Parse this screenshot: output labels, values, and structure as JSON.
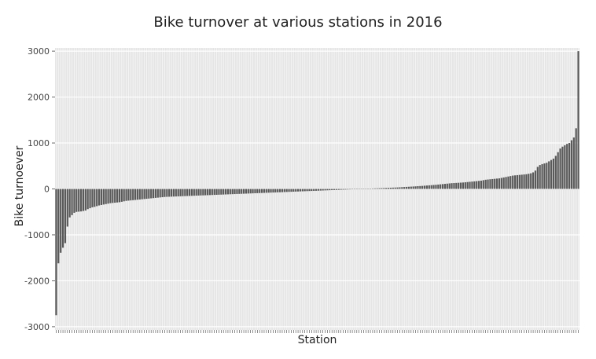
{
  "chart_data": {
    "type": "bar",
    "title": "Bike turnover at various stations in 2016",
    "xlabel": "Station",
    "ylabel": "Bike turnoever",
    "ylim": [
      -3070,
      3070
    ],
    "yticks": [
      -3000,
      -2000,
      -1000,
      0,
      1000,
      2000,
      3000
    ],
    "ytick_labels": [
      "-3000",
      "-2000",
      "-1000",
      "0",
      "1000",
      "2000",
      "3000"
    ],
    "x_tick_labels_visible": false,
    "grid": true,
    "bar_color": "#595959",
    "values": [
      -2750,
      -1620,
      -1390,
      -1280,
      -1180,
      -820,
      -620,
      -570,
      -520,
      -500,
      -495,
      -490,
      -480,
      -470,
      -440,
      -420,
      -400,
      -390,
      -375,
      -360,
      -350,
      -340,
      -330,
      -320,
      -310,
      -305,
      -300,
      -295,
      -290,
      -280,
      -270,
      -260,
      -255,
      -250,
      -245,
      -240,
      -235,
      -230,
      -225,
      -220,
      -215,
      -210,
      -205,
      -200,
      -195,
      -190,
      -185,
      -180,
      -175,
      -172,
      -170,
      -168,
      -166,
      -164,
      -162,
      -160,
      -158,
      -156,
      -154,
      -152,
      -150,
      -148,
      -146,
      -144,
      -142,
      -140,
      -138,
      -136,
      -134,
      -132,
      -130,
      -128,
      -126,
      -124,
      -122,
      -120,
      -118,
      -116,
      -114,
      -112,
      -110,
      -108,
      -106,
      -104,
      -102,
      -100,
      -98,
      -96,
      -94,
      -92,
      -90,
      -88,
      -86,
      -84,
      -82,
      -80,
      -78,
      -76,
      -74,
      -72,
      -70,
      -68,
      -66,
      -64,
      -62,
      -60,
      -58,
      -56,
      -54,
      -52,
      -50,
      -48,
      -46,
      -44,
      -42,
      -40,
      -38,
      -36,
      -34,
      -32,
      -30,
      -28,
      -26,
      -24,
      -22,
      -20,
      -18,
      -16,
      -14,
      -12,
      -10,
      -8,
      -6,
      -4,
      -2,
      0,
      2,
      4,
      6,
      8,
      10,
      12,
      14,
      16,
      18,
      20,
      22,
      24,
      26,
      28,
      30,
      32,
      35,
      38,
      41,
      44,
      47,
      50,
      53,
      56,
      60,
      63,
      66,
      70,
      74,
      78,
      82,
      86,
      90,
      95,
      100,
      105,
      110,
      115,
      120,
      125,
      128,
      131,
      134,
      137,
      140,
      145,
      150,
      155,
      160,
      165,
      170,
      175,
      180,
      190,
      200,
      205,
      210,
      215,
      220,
      225,
      230,
      240,
      250,
      260,
      270,
      280,
      290,
      295,
      300,
      305,
      310,
      315,
      320,
      330,
      340,
      360,
      400,
      480,
      520,
      540,
      555,
      570,
      600,
      630,
      660,
      720,
      800,
      880,
      920,
      950,
      980,
      1000,
      1060,
      1120,
      1320,
      3000
    ]
  }
}
